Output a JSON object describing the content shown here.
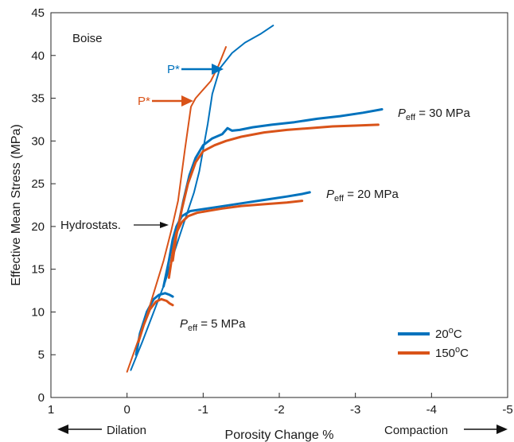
{
  "chart_data": {
    "type": "line",
    "title": "",
    "xlabel": "Porosity Change %",
    "ylabel": "Effective Mean Stress (MPa)",
    "xlim": [
      1,
      -5
    ],
    "ylim": [
      0,
      45
    ],
    "x_reversed": true,
    "xticks": [
      1,
      0,
      -1,
      -2,
      -3,
      -4,
      -5
    ],
    "xtick_labels": [
      "1",
      "0",
      "-1",
      "-2",
      "-3",
      "-4",
      "-5"
    ],
    "yticks": [
      0,
      5,
      10,
      15,
      20,
      25,
      30,
      35,
      40,
      45
    ],
    "ytick_labels": [
      "0",
      "5",
      "10",
      "15",
      "20",
      "25",
      "30",
      "35",
      "40",
      "45"
    ],
    "grid": false,
    "legend_position": "lower-right",
    "colors": {
      "blue": "#0072BD",
      "orange": "#D95319",
      "text": "#1a1a1a"
    },
    "series": [
      {
        "name": "20°C",
        "legend_main": "20",
        "legend_sup": "o",
        "legend_tail": "C",
        "color": "#0072BD",
        "role": "experiments",
        "curves": [
          {
            "x": [
              -0.12,
              -0.17,
              -0.26,
              -0.35,
              -0.42,
              -0.5,
              -0.56,
              -0.6
            ],
            "y": [
              5,
              7.5,
              10,
              11.5,
              12,
              12.2,
              12,
              11.8
            ]
          },
          {
            "x": [
              -0.48,
              -0.55,
              -0.6,
              -0.65,
              -0.72,
              -0.83,
              -0.98,
              -1.2,
              -1.5,
              -1.8,
              -2.1,
              -2.3,
              -2.4
            ],
            "y": [
              13,
              16,
              18.5,
              20,
              21.2,
              21.8,
              22,
              22.3,
              22.7,
              23.1,
              23.5,
              23.8,
              24
            ]
          },
          {
            "x": [
              -0.6,
              -0.67,
              -0.74,
              -0.82,
              -0.9,
              -1.0,
              -1.12,
              -1.25,
              -1.32,
              -1.38,
              -1.48,
              -1.65,
              -1.9,
              -2.2,
              -2.5,
              -2.8,
              -3.1,
              -3.35
            ],
            "y": [
              17,
              20,
              23,
              26,
              28,
              29.5,
              30.3,
              30.8,
              31.5,
              31.2,
              31.3,
              31.6,
              31.9,
              32.2,
              32.6,
              32.9,
              33.3,
              33.7
            ]
          },
          {
            "x": [
              -0.05,
              -0.2,
              -0.35,
              -0.5,
              -0.62,
              -0.75,
              -0.88,
              -0.95,
              -1.0,
              -1.06,
              -1.12,
              -1.22,
              -1.38,
              -1.55,
              -1.75,
              -1.92
            ],
            "y": [
              3.2,
              6.5,
              10,
              13.5,
              17,
              20.5,
              24,
              26.5,
              29,
              32,
              35.5,
              38.5,
              40.3,
              41.5,
              42.5,
              43.5
            ]
          }
        ]
      },
      {
        "name": "150°C",
        "legend_main": "150",
        "legend_sup": "o",
        "legend_tail": "C",
        "color": "#D95319",
        "role": "experiments",
        "curves": [
          {
            "x": [
              -0.15,
              -0.22,
              -0.3,
              -0.38,
              -0.45,
              -0.52,
              -0.56,
              -0.6
            ],
            "y": [
              6.5,
              8.5,
              10.3,
              11.2,
              11.5,
              11.3,
              11,
              10.8
            ]
          },
          {
            "x": [
              -0.55,
              -0.6,
              -0.65,
              -0.72,
              -0.8,
              -0.92,
              -1.05,
              -1.25,
              -1.5,
              -1.8,
              -2.1,
              -2.3
            ],
            "y": [
              14,
              17,
              19.3,
              20.5,
              21.2,
              21.6,
              21.8,
              22.1,
              22.4,
              22.6,
              22.8,
              23
            ]
          },
          {
            "x": [
              -0.6,
              -0.65,
              -0.72,
              -0.8,
              -0.9,
              -1.0,
              -1.15,
              -1.3,
              -1.5,
              -1.8,
              -2.1,
              -2.4,
              -2.7,
              -3.0,
              -3.3
            ],
            "y": [
              16,
              19,
              22,
              25,
              27.5,
              28.8,
              29.5,
              30,
              30.5,
              31,
              31.3,
              31.5,
              31.7,
              31.8,
              31.9
            ]
          },
          {
            "x": [
              0,
              -0.12,
              -0.24,
              -0.36,
              -0.48,
              -0.58,
              -0.67,
              -0.76,
              -0.84,
              -0.9,
              -1.0,
              -1.1,
              -1.2,
              -1.3
            ],
            "y": [
              3,
              6,
              9,
              12.5,
              16,
              19.5,
              23,
              29,
              34,
              35,
              36,
              37,
              38.8,
              41
            ]
          }
        ]
      }
    ],
    "annotations": {
      "location": "Boise",
      "p_star_blue": "P*",
      "p_star_orange": "P*",
      "hydrostats": "Hydrostats.",
      "peff_symbol": "P",
      "peff_sub": "eff",
      "peff_30": " = 30 MPa",
      "peff_20": " = 20 MPa",
      "peff_5": " = 5 MPa",
      "dilation": "Dilation",
      "compaction": "Compaction"
    }
  }
}
